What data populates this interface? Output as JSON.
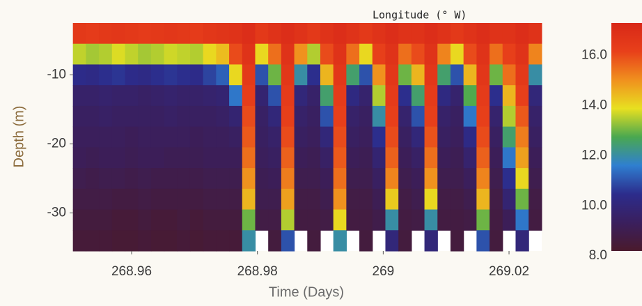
{
  "chart_data": {
    "type": "heatmap",
    "title": "Longitude (° W)",
    "x_label": "Time (Days)",
    "y_label": "Depth (m)",
    "x": [
      268.9517,
      268.95377,
      268.95584,
      268.95791,
      268.95998,
      268.96205,
      268.96412,
      268.96619,
      268.96826,
      268.97033,
      268.9724,
      268.97447,
      268.97654,
      268.97861,
      268.98068,
      268.98275,
      268.98482,
      268.98689,
      268.98896,
      268.99103,
      268.9931,
      268.99517,
      268.99724,
      268.99931,
      269.00138,
      269.00345,
      269.00552,
      269.00759,
      269.00966,
      269.01173,
      269.0138,
      269.01587,
      269.01794,
      269.02001,
      269.02208,
      269.02415
    ],
    "y": [
      -4,
      -7,
      -10,
      -13,
      -16,
      -19,
      -22,
      -25,
      -28,
      -31,
      -34
    ],
    "z": [
      [
        16.5,
        13.6,
        10.4,
        9.6,
        9.4,
        9.3,
        9.2,
        9.0,
        8.8,
        8.6,
        8.5
      ],
      [
        16.4,
        13.4,
        10.3,
        9.6,
        9.4,
        9.3,
        9.1,
        8.9,
        8.8,
        8.6,
        8.5
      ],
      [
        16.5,
        13.5,
        10.5,
        9.7,
        9.5,
        9.3,
        9.2,
        9.0,
        8.8,
        8.6,
        8.5
      ],
      [
        16.6,
        13.8,
        10.6,
        9.6,
        9.4,
        9.3,
        9.2,
        9.0,
        8.7,
        8.5,
        8.4
      ],
      [
        16.5,
        13.6,
        10.4,
        9.6,
        9.4,
        9.2,
        9.1,
        8.9,
        8.7,
        8.5,
        8.4
      ],
      [
        16.4,
        13.4,
        10.3,
        9.5,
        9.4,
        9.3,
        9.2,
        9.0,
        8.8,
        8.6,
        8.5
      ],
      [
        16.5,
        13.5,
        10.5,
        9.6,
        9.4,
        9.3,
        9.2,
        8.9,
        8.7,
        8.5,
        8.4
      ],
      [
        16.6,
        13.7,
        10.6,
        9.7,
        9.5,
        9.3,
        9.1,
        8.9,
        8.7,
        8.5,
        8.4
      ],
      [
        16.5,
        13.6,
        10.5,
        9.6,
        9.4,
        9.3,
        9.1,
        8.9,
        8.7,
        8.6,
        8.5
      ],
      [
        16.4,
        13.5,
        10.4,
        9.6,
        9.4,
        9.2,
        9.1,
        8.9,
        8.7,
        8.5,
        8.4
      ],
      [
        16.6,
        14.0,
        10.8,
        9.7,
        9.4,
        9.3,
        9.2,
        9.0,
        8.8,
        8.6,
        8.5
      ],
      [
        16.7,
        14.4,
        11.2,
        9.8,
        9.5,
        9.3,
        9.2,
        9.0,
        8.8,
        8.6,
        8.5
      ],
      [
        16.8,
        16.0,
        14.0,
        11.5,
        9.8,
        9.4,
        9.2,
        9.0,
        8.8,
        8.6,
        8.5
      ],
      [
        17.0,
        16.8,
        16.5,
        16.3,
        16.0,
        15.8,
        15.5,
        15.0,
        14.5,
        13.0,
        12.0
      ],
      [
        16.5,
        14.0,
        11.0,
        9.8,
        9.5,
        9.4,
        9.3,
        9.1,
        9.0,
        8.8,
        null
      ],
      [
        16.8,
        15.5,
        13.0,
        11.0,
        10.0,
        9.6,
        9.4,
        9.2,
        9.0,
        8.8,
        8.6
      ],
      [
        17.0,
        16.8,
        16.6,
        16.4,
        16.2,
        16.0,
        15.7,
        15.3,
        14.8,
        13.5,
        11.0
      ],
      [
        16.8,
        15.0,
        12.0,
        10.0,
        9.6,
        9.4,
        9.2,
        9.0,
        8.8,
        8.7,
        null
      ],
      [
        16.5,
        13.5,
        10.5,
        9.6,
        9.4,
        9.3,
        9.1,
        9.0,
        8.8,
        8.7,
        8.6
      ],
      [
        16.8,
        16.0,
        14.5,
        12.5,
        11.0,
        10.0,
        9.5,
        9.2,
        9.0,
        8.8,
        null
      ],
      [
        17.0,
        16.8,
        16.6,
        16.4,
        16.2,
        16.0,
        15.8,
        15.5,
        15.0,
        14.0,
        12.0
      ],
      [
        16.8,
        15.5,
        12.5,
        10.2,
        9.6,
        9.4,
        9.2,
        9.0,
        8.8,
        8.7,
        null
      ],
      [
        16.5,
        14.0,
        11.0,
        9.7,
        9.4,
        9.3,
        9.1,
        9.0,
        8.8,
        8.7,
        8.6
      ],
      [
        16.8,
        16.2,
        15.0,
        13.5,
        12.0,
        10.5,
        9.8,
        9.4,
        9.1,
        8.9,
        null
      ],
      [
        17.0,
        16.8,
        16.6,
        16.4,
        16.2,
        16.0,
        15.7,
        15.2,
        14.2,
        12.0,
        10.0
      ],
      [
        16.8,
        15.5,
        13.0,
        10.5,
        9.7,
        9.4,
        9.2,
        9.0,
        8.8,
        8.7,
        8.6
      ],
      [
        16.8,
        16.0,
        14.5,
        12.5,
        11.0,
        10.0,
        9.5,
        9.2,
        9.0,
        8.8,
        null
      ],
      [
        17.0,
        16.8,
        16.6,
        16.4,
        16.2,
        15.9,
        15.5,
        15.0,
        14.0,
        12.0,
        10.0
      ],
      [
        16.8,
        15.2,
        12.5,
        10.2,
        9.6,
        9.4,
        9.2,
        9.0,
        8.8,
        8.7,
        null
      ],
      [
        16.5,
        14.0,
        11.0,
        9.7,
        9.4,
        9.3,
        9.1,
        9.0,
        8.8,
        8.7,
        8.6
      ],
      [
        16.8,
        16.0,
        14.5,
        12.8,
        11.5,
        10.3,
        9.7,
        9.3,
        9.0,
        8.8,
        null
      ],
      [
        17.0,
        16.8,
        16.6,
        16.4,
        16.2,
        16.0,
        15.7,
        15.2,
        14.5,
        13.0,
        11.0
      ],
      [
        16.8,
        15.5,
        13.0,
        10.5,
        9.7,
        9.4,
        9.2,
        9.0,
        8.8,
        8.7,
        8.6
      ],
      [
        16.8,
        16.2,
        15.5,
        14.5,
        13.5,
        12.5,
        11.5,
        10.5,
        9.8,
        9.2,
        null
      ],
      [
        17.0,
        16.8,
        16.5,
        16.2,
        15.8,
        15.3,
        14.8,
        14.0,
        13.0,
        11.5,
        10.0
      ],
      [
        16.8,
        15.2,
        12.0,
        10.0,
        9.6,
        9.4,
        9.2,
        9.0,
        8.8,
        8.7,
        null
      ]
    ],
    "xlim": [
      268.9507,
      269.0252
    ],
    "ylim": [
      -35.5,
      -2.5
    ],
    "xticks": [
      268.96,
      268.98,
      269,
      269.02
    ],
    "yticks": [
      -10,
      -20,
      -30
    ],
    "clim": [
      8.2,
      17.3
    ],
    "cticks": [
      {
        "value": 8,
        "label": "8.0"
      },
      {
        "value": 10,
        "label": "10.0"
      },
      {
        "value": 12,
        "label": "12.0"
      },
      {
        "value": 14,
        "label": "14.0"
      },
      {
        "value": 16,
        "label": "16.0"
      }
    ],
    "colormap": [
      "#4a1a2c",
      "#3a1f5e",
      "#2c2c8c",
      "#2f7fd0",
      "#4aa850",
      "#e8e020",
      "#f0901e",
      "#e8401a",
      "#d82818"
    ],
    "missing_color": "#ffffff"
  }
}
